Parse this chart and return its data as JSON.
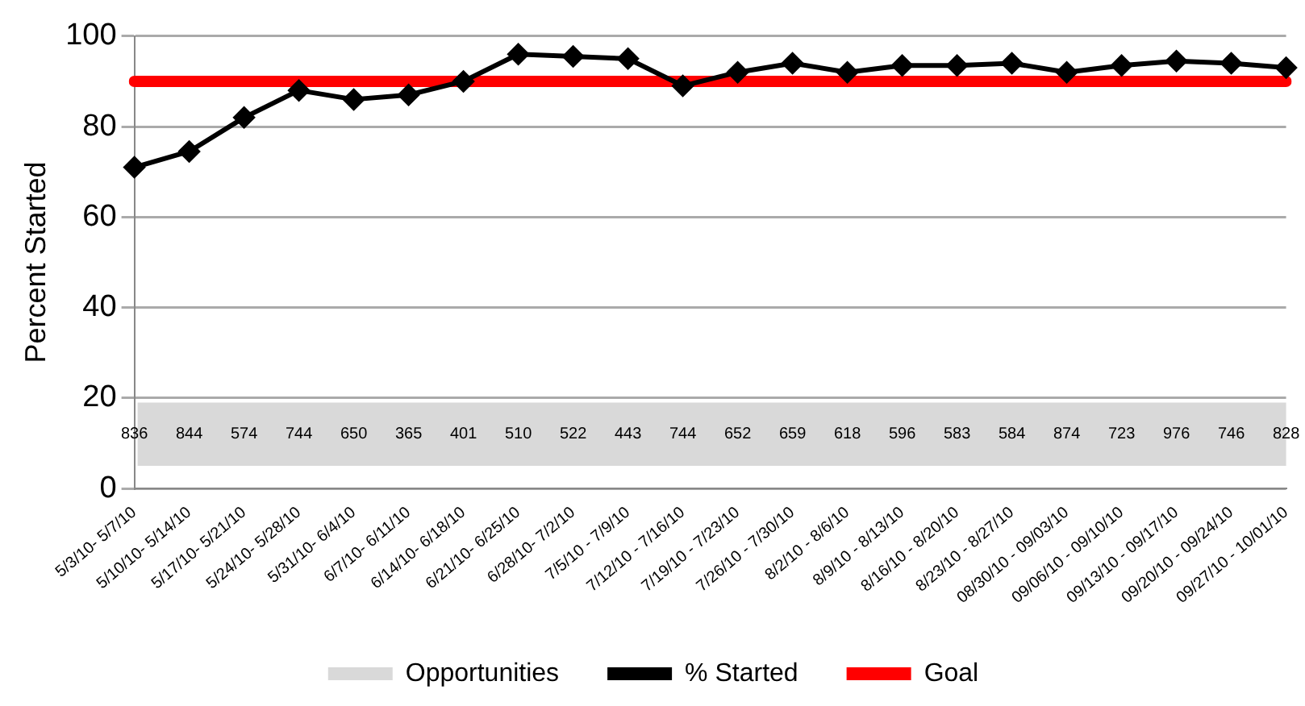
{
  "chart_data": {
    "type": "line",
    "ylabel": "Percent Started",
    "categories": [
      "5/3/10- 5/7/10",
      "5/10/10- 5/14/10",
      "5/17/10- 5/21/10",
      "5/24/10- 5/28/10",
      "5/31/10- 6/4/10",
      "6/7/10- 6/11/10",
      "6/14/10- 6/18/10",
      "6/21/10- 6/25/10",
      "6/28/10- 7/2/10",
      "7/5/10 - 7/9/10",
      "7/12/10 - 7/16/10",
      "7/19/10 - 7/23/10",
      "7/26/10 - 7/30/10",
      "8/2/10 - 8/6/10",
      "8/9/10 - 8/13/10",
      "8/16/10 - 8/20/10",
      "8/23/10 - 8/27/10",
      "08/30/10 - 09/03/10",
      "09/06/10 - 09/10/10",
      "09/13/10 - 09/17/10",
      "09/20/10 - 09/24/10",
      "09/27/10 - 10/01/10"
    ],
    "series": [
      {
        "name": "% Started",
        "color": "#000000",
        "marker": "diamond",
        "values": [
          71,
          74.5,
          82,
          88,
          86,
          87,
          90,
          96,
          95.5,
          95,
          89,
          92,
          94,
          92,
          93.5,
          93.5,
          94,
          92,
          93.5,
          94.5,
          94,
          93
        ]
      },
      {
        "name": "Goal",
        "color": "#ff0000",
        "marker": "none",
        "values": [
          90,
          90,
          90,
          90,
          90,
          90,
          90,
          90,
          90,
          90,
          90,
          90,
          90,
          90,
          90,
          90,
          90,
          90,
          90,
          90,
          90,
          90
        ]
      }
    ],
    "bands": [
      {
        "axis": "y",
        "from": 5,
        "to": 19,
        "label": "Opportunities",
        "color": "#d9d9d9"
      }
    ],
    "annotations": [
      "836",
      "844",
      "574",
      "744",
      "650",
      "365",
      "401",
      "510",
      "522",
      "443",
      "744",
      "652",
      "659",
      "618",
      "596",
      "583",
      "584",
      "874",
      "723",
      "976",
      "746",
      "828"
    ],
    "ylim": [
      0,
      100
    ],
    "yticks": [
      0,
      20,
      40,
      60,
      80,
      100
    ],
    "grid": "y",
    "legend": "bottom"
  }
}
